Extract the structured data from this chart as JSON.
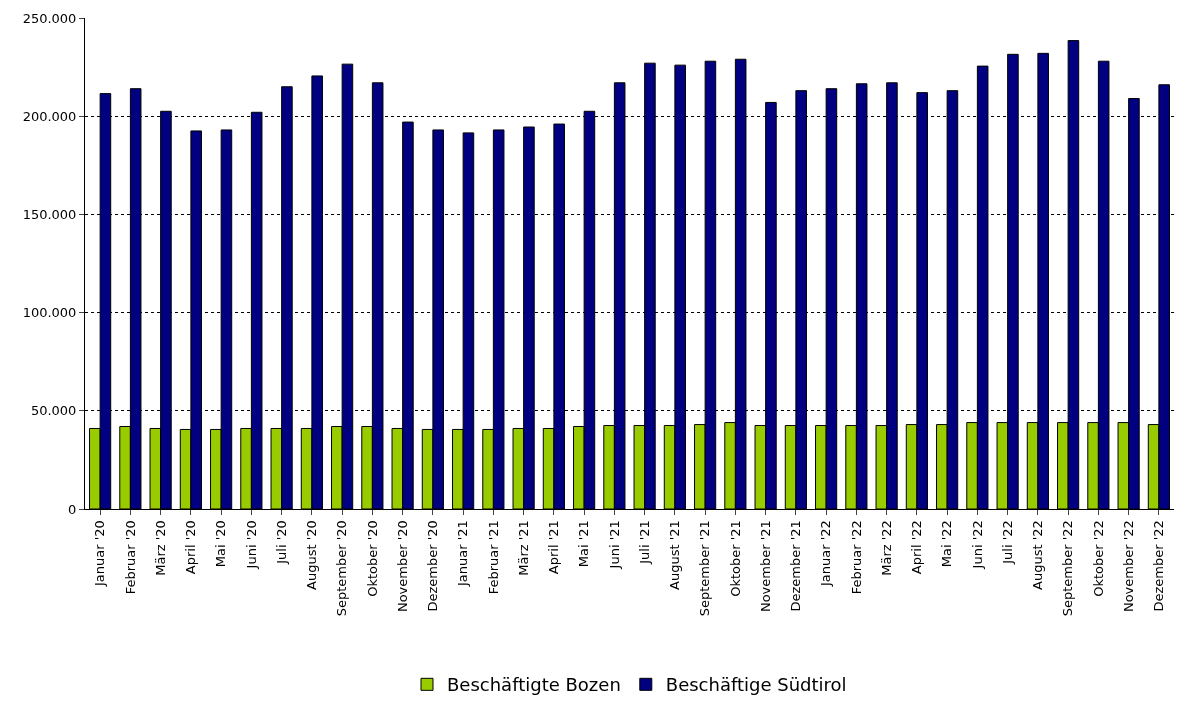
{
  "chart_data": {
    "type": "bar",
    "categories": [
      "Januar '20",
      "Februar '20",
      "März '20",
      "April '20",
      "Mai '20",
      "Juni '20",
      "Juli '20",
      "August '20",
      "September '20",
      "Oktober '20",
      "November '20",
      "Dezember '20",
      "Januar '21",
      "Februar '21",
      "März '21",
      "April '21",
      "Mai '21",
      "Juni '21",
      "Juli '21",
      "August '21",
      "September '21",
      "Oktober '21",
      "November '21",
      "Dezember '21",
      "Januar '22",
      "Februar '22",
      "März '22",
      "April '22",
      "Mai '22",
      "Juni '22",
      "Juli '22",
      "August '22",
      "September '22",
      "Oktober '22",
      "November '22",
      "Dezember '22"
    ],
    "series": [
      {
        "name": "Beschäftigte Bozen",
        "color": "#99cc00",
        "values": [
          41000,
          42000,
          41000,
          40500,
          40500,
          41000,
          41000,
          41000,
          42000,
          42000,
          41000,
          40500,
          40500,
          40500,
          41000,
          41000,
          42000,
          42500,
          42500,
          42500,
          43000,
          44000,
          42500,
          42500,
          42500,
          42500,
          42500,
          43000,
          43000,
          44000,
          44000,
          44000,
          44000,
          44000,
          44000,
          43000
        ]
      },
      {
        "name": "Beschäftige Südtirol",
        "color": "#000080",
        "values": [
          211500,
          214000,
          202500,
          192500,
          193000,
          202000,
          215000,
          220500,
          226500,
          217000,
          197000,
          193000,
          191500,
          193000,
          194500,
          196000,
          202500,
          217000,
          227000,
          226000,
          228000,
          229000,
          207000,
          213000,
          214000,
          216500,
          217000,
          212000,
          213000,
          225500,
          231500,
          232000,
          238500,
          228000,
          209000,
          216000
        ]
      }
    ],
    "ylim": [
      0,
      250000
    ],
    "yticks": [
      {
        "value": 0,
        "label": "0"
      },
      {
        "value": 50000,
        "label": "50.000"
      },
      {
        "value": 100000,
        "label": "100.000"
      },
      {
        "value": 150000,
        "label": "150.000"
      },
      {
        "value": 200000,
        "label": "200.000"
      },
      {
        "value": 250000,
        "label": "250.000"
      }
    ],
    "grid": "y",
    "legend": "bottom"
  }
}
